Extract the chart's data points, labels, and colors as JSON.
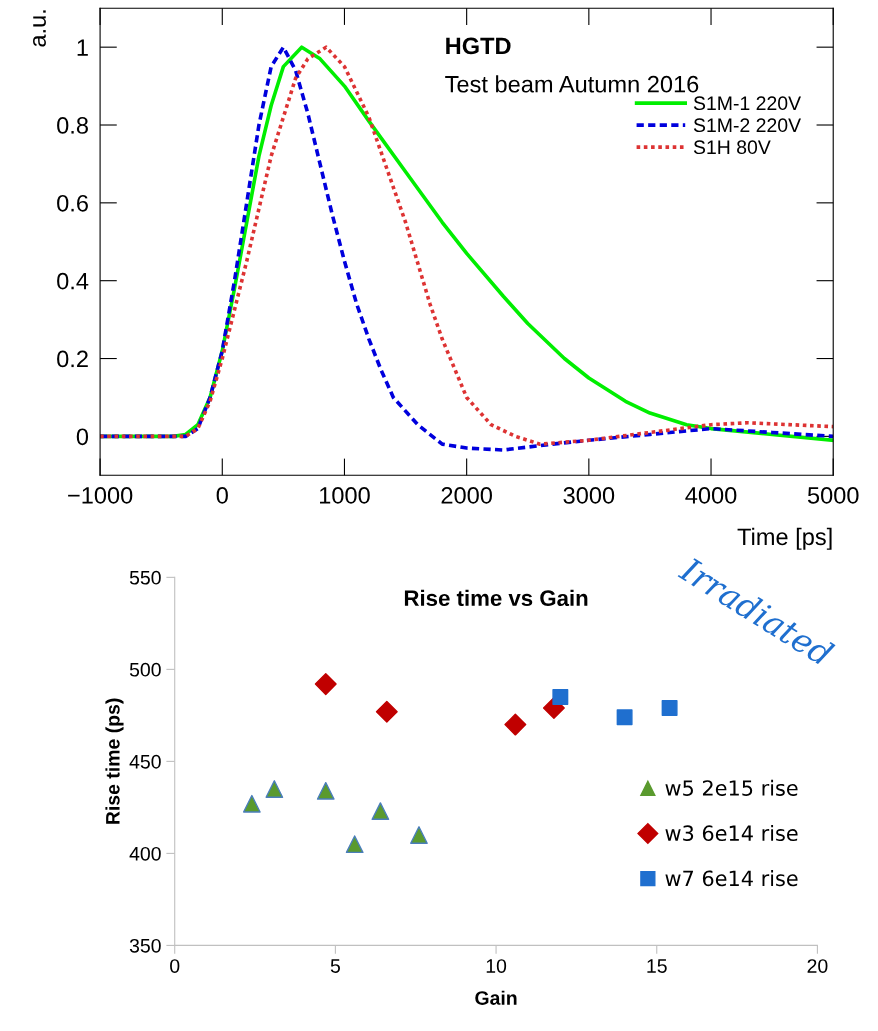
{
  "chart_data": [
    {
      "type": "line",
      "xlabel": "Time [ps]",
      "ylabel": "a.u.",
      "annotations": [
        "HGTD",
        "Test beam Autumn 2016"
      ],
      "xlim": [
        -1000,
        5000
      ],
      "xticks": [
        {
          "value": -1000,
          "label": "−1000"
        },
        0,
        1000,
        2000,
        3000,
        4000,
        5000
      ],
      "ylim": [
        -0.1,
        1.1
      ],
      "yticks": [
        0,
        0.2,
        0.4,
        0.6,
        0.8,
        1
      ],
      "grid": false,
      "legend": "top right",
      "series": [
        {
          "name": "S1M-1 220V",
          "color": "#00ee00",
          "line_style": "solid",
          "x": [
            -1000,
            -400,
            -300,
            -200,
            -100,
            0,
            100,
            200,
            300,
            400,
            500,
            650,
            800,
            1000,
            1200,
            1500,
            1800,
            2000,
            2300,
            2500,
            2800,
            3000,
            3300,
            3500,
            3800,
            4000,
            4500,
            5000
          ],
          "values": [
            0,
            0,
            0.005,
            0.03,
            0.1,
            0.22,
            0.38,
            0.55,
            0.72,
            0.85,
            0.95,
            1.0,
            0.97,
            0.9,
            0.81,
            0.68,
            0.55,
            0.47,
            0.36,
            0.29,
            0.2,
            0.15,
            0.09,
            0.06,
            0.03,
            0.02,
            0.005,
            -0.01
          ]
        },
        {
          "name": "S1M-2 220V",
          "color": "#0000dd",
          "line_style": "dashed",
          "x": [
            -1000,
            -300,
            -200,
            -100,
            0,
            100,
            200,
            300,
            400,
            500,
            600,
            700,
            800,
            900,
            1000,
            1100,
            1200,
            1300,
            1400,
            1600,
            1800,
            2000,
            2300,
            2700,
            3000,
            3500,
            4000,
            4500,
            5000
          ],
          "values": [
            0,
            0,
            0.02,
            0.1,
            0.22,
            0.4,
            0.6,
            0.8,
            0.95,
            1.0,
            0.94,
            0.83,
            0.7,
            0.57,
            0.45,
            0.34,
            0.25,
            0.17,
            0.1,
            0.03,
            -0.02,
            -0.03,
            -0.035,
            -0.02,
            -0.01,
            0.005,
            0.02,
            0.01,
            0.0
          ]
        },
        {
          "name": "S1H 80V",
          "color": "#dd3333",
          "line_style": "dotted",
          "x": [
            -1000,
            -300,
            -200,
            -100,
            0,
            200,
            400,
            600,
            700,
            850,
            1000,
            1200,
            1400,
            1500,
            1700,
            1800,
            2000,
            2200,
            2400,
            2600,
            3000,
            3500,
            4000,
            4300,
            5000
          ],
          "values": [
            0,
            0,
            0.02,
            0.09,
            0.2,
            0.45,
            0.72,
            0.92,
            0.97,
            1.0,
            0.95,
            0.82,
            0.64,
            0.55,
            0.34,
            0.25,
            0.1,
            0.03,
            0.0,
            -0.02,
            -0.01,
            0.01,
            0.03,
            0.035,
            0.025
          ]
        }
      ]
    },
    {
      "type": "scatter",
      "title": "Rise time vs Gain",
      "xlabel": "Gain",
      "ylabel": "Rise time (ps)",
      "annotations": [
        "Irradiated"
      ],
      "xlim": [
        0,
        20
      ],
      "xticks": [
        0,
        5,
        10,
        15,
        20
      ],
      "ylim": [
        350,
        550
      ],
      "yticks": [
        350,
        400,
        450,
        500,
        550
      ],
      "grid": false,
      "legend": "right",
      "series": [
        {
          "name": "w5 2e15 rise",
          "color": "#5a9a2e",
          "marker": "triangle",
          "x": [
            2.4,
            3.1,
            4.7,
            5.6,
            6.4,
            7.6
          ],
          "values": [
            427,
            435,
            434,
            405,
            423,
            410
          ]
        },
        {
          "name": "w3 6e14 rise",
          "color": "#c00000",
          "marker": "diamond",
          "x": [
            4.7,
            6.6,
            10.6,
            11.8
          ],
          "values": [
            492,
            477,
            470,
            479
          ]
        },
        {
          "name": "w7 6e14 rise",
          "color": "#1f6fcf",
          "marker": "square",
          "x": [
            12.0,
            14.0,
            15.4
          ],
          "values": [
            485,
            474,
            479
          ]
        }
      ]
    }
  ]
}
